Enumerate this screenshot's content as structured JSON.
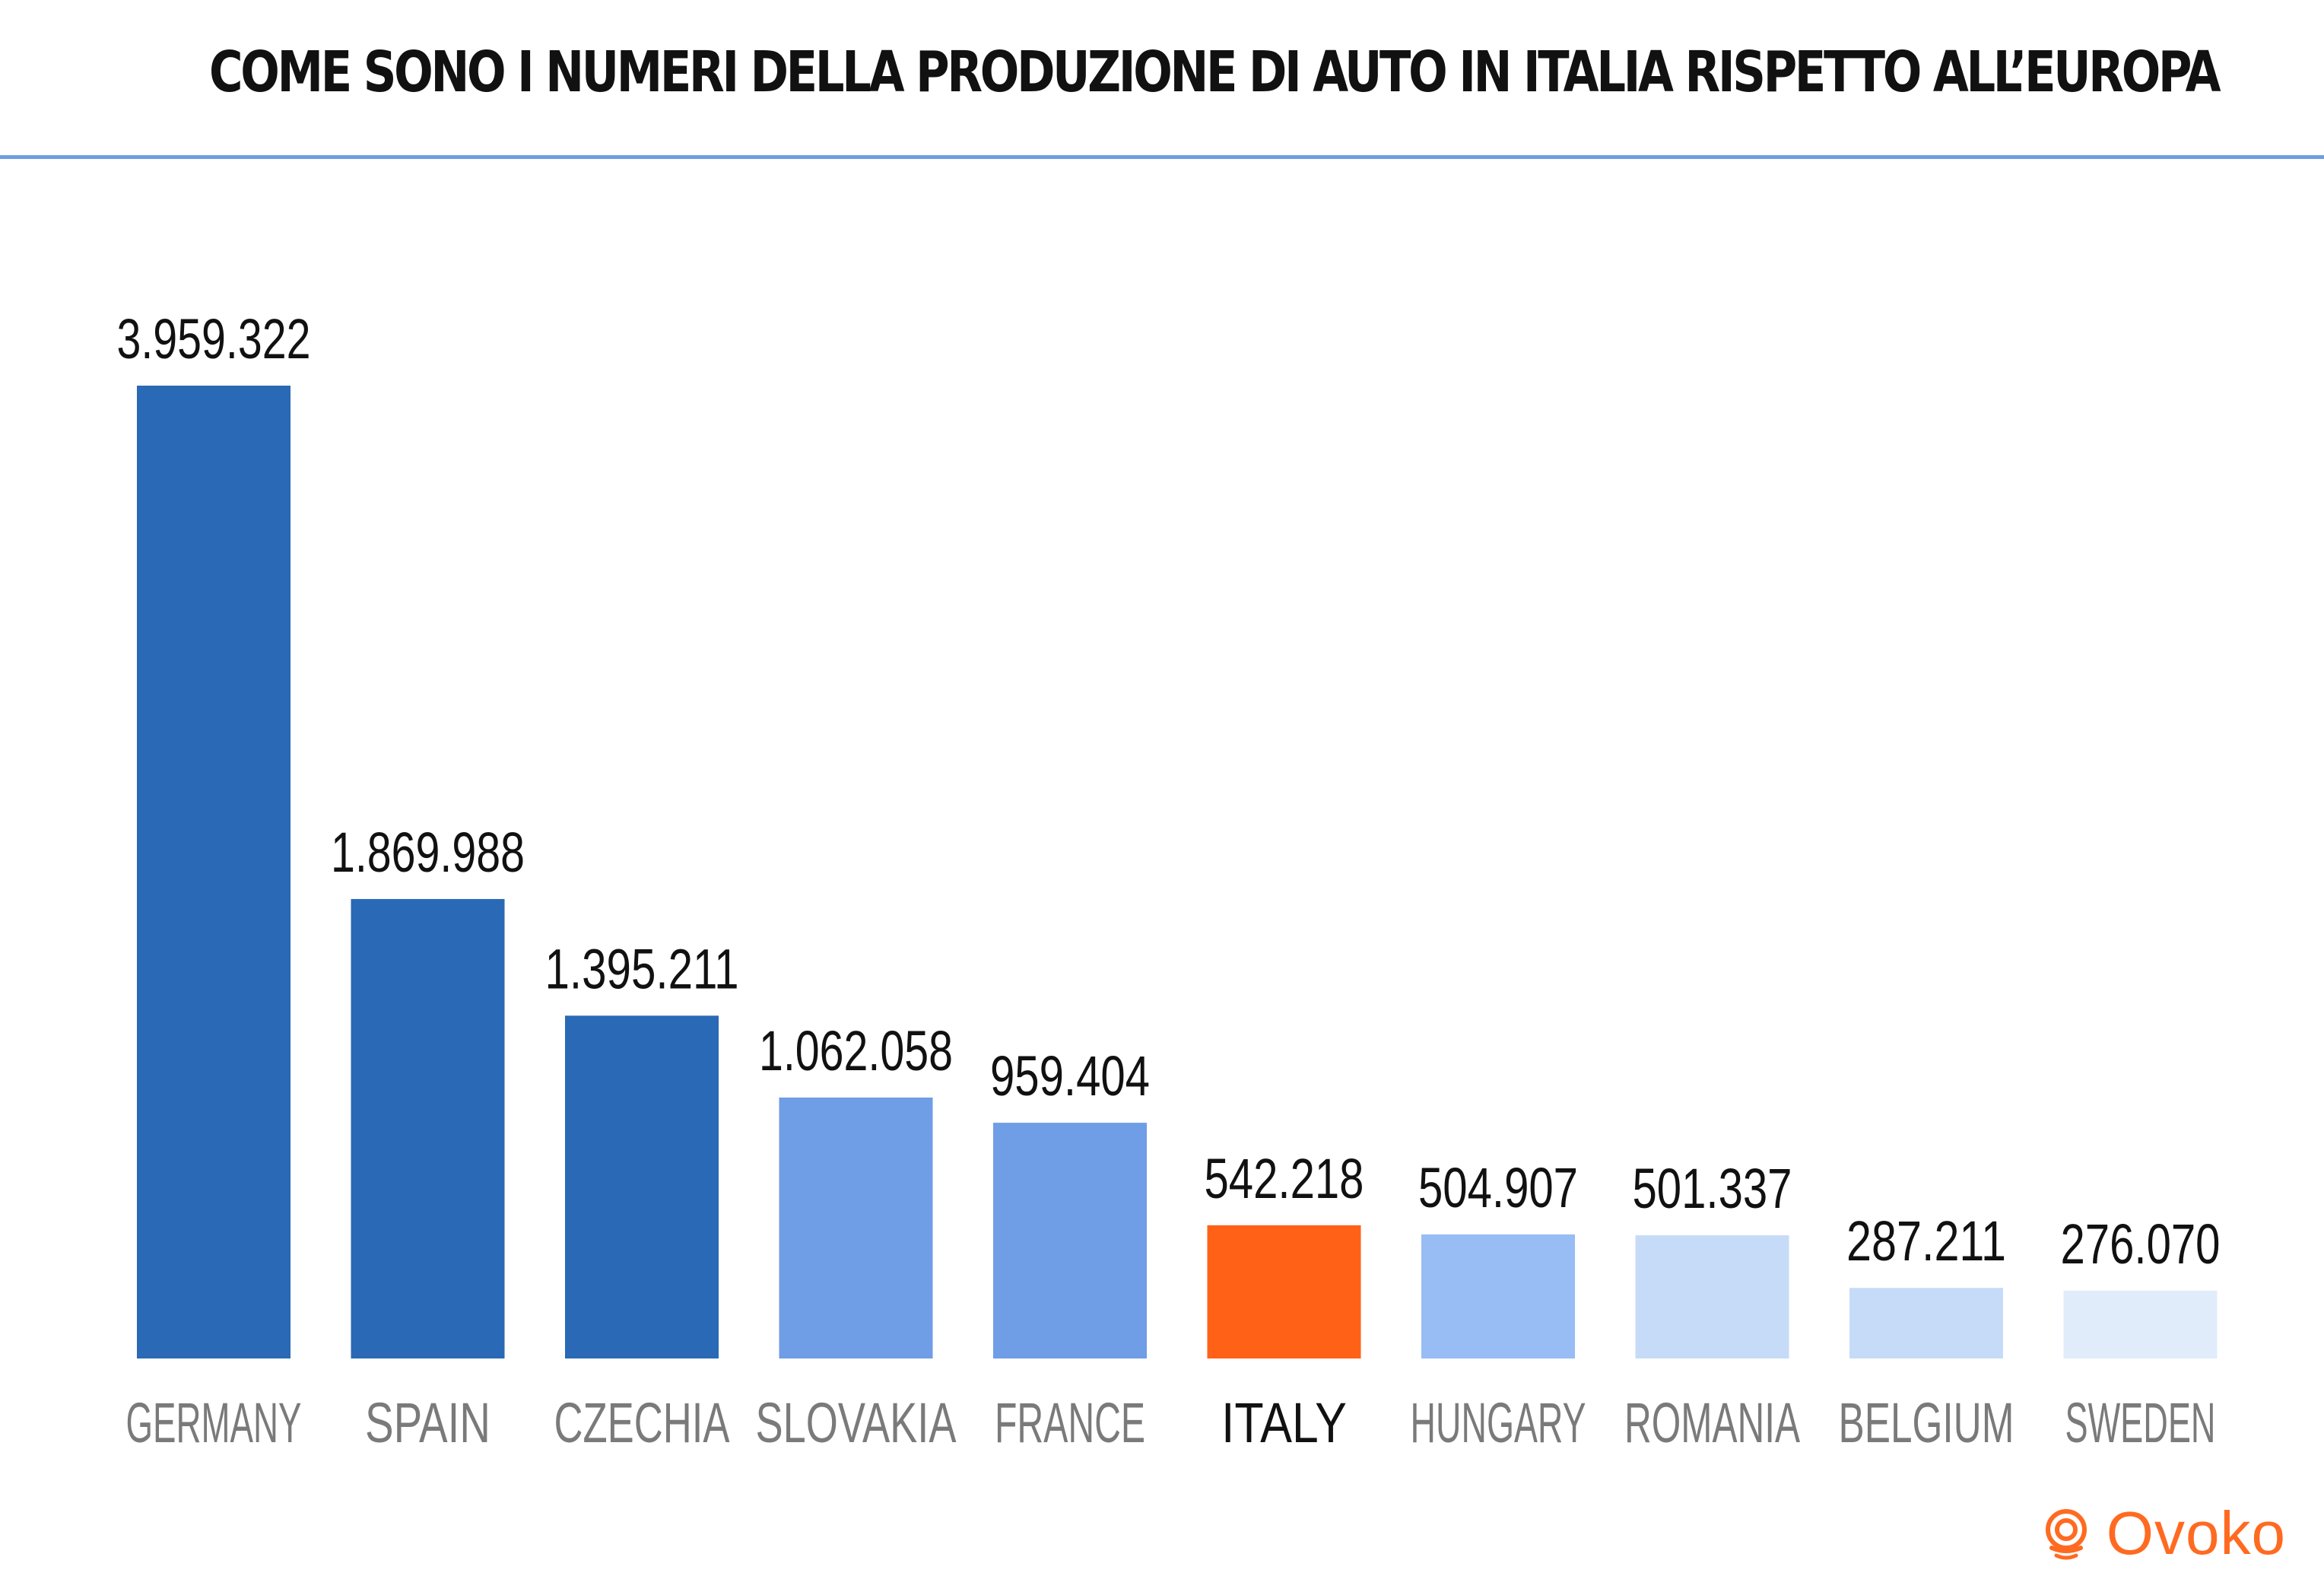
{
  "title": "COME SONO I NUMERI DELLA PRODUZIONE DI AUTO IN ITALIA RISPETTO ALL’EUROPA",
  "brand": {
    "name": "Ovoko",
    "color": "#ff6a21"
  },
  "colors": {
    "title_rule": "#6f9de0",
    "label_default": "#7a7a7a",
    "label_highlight": "#111111",
    "value_text": "#111111"
  },
  "chart_data": {
    "type": "bar",
    "title": "COME SONO I NUMERI DELLA PRODUZIONE DI AUTO IN ITALIA RISPETTO ALL’EUROPA",
    "xlabel": "",
    "ylabel": "",
    "ylim": [
      0,
      3959322
    ],
    "grid": false,
    "legend": "none",
    "categories": [
      "GERMANY",
      "SPAIN",
      "CZECHIA",
      "SLOVAKIA",
      "FRANCE",
      "ITALY",
      "HUNGARY",
      "ROMANIA",
      "BELGIUM",
      "SWEDEN"
    ],
    "values": [
      3959322,
      1869988,
      1395211,
      1062058,
      959404,
      542218,
      504907,
      501337,
      287211,
      276070
    ],
    "value_labels": [
      "3.959.322",
      "1.869.988",
      "1.395.211",
      "1.062.058",
      "959.404",
      "542.218",
      "504.907",
      "501.337",
      "287.211",
      "276.070"
    ],
    "bar_colors": [
      "#2a69b5",
      "#2a69b5",
      "#2a69b5",
      "#6f9de6",
      "#6f9de6",
      "#ff6117",
      "#98bcf4",
      "#c6dbf7",
      "#c6dbf7",
      "#e0ecfa"
    ],
    "highlight": "ITALY"
  }
}
